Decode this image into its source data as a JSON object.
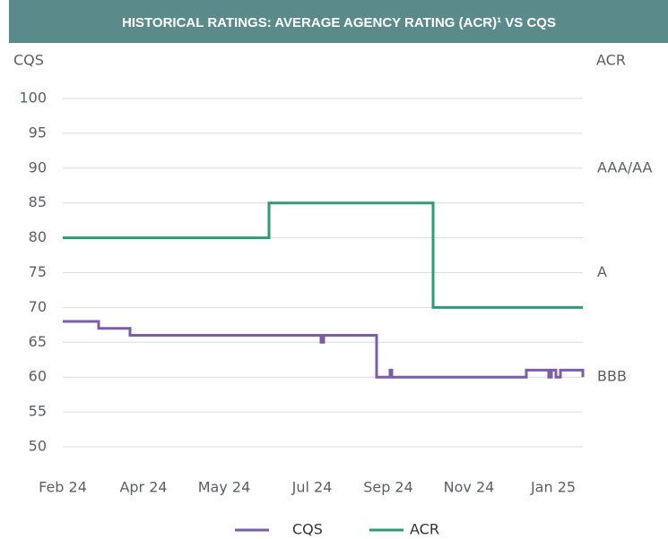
{
  "chart_data": {
    "type": "line",
    "title": "HISTORICAL RATINGS: AVERAGE AGENCY RATING (ACR)¹ VS CQS",
    "ylabel": "CQS",
    "y2label": "ACR",
    "step": true,
    "xlim": [
      0,
      580
    ],
    "xticks": [
      {
        "value": 0,
        "label": "Feb 24"
      },
      {
        "value": 90,
        "label": "Apr 24"
      },
      {
        "value": 180,
        "label": "May 24"
      },
      {
        "value": 278,
        "label": "Jul 24"
      },
      {
        "value": 363,
        "label": "Sep 24"
      },
      {
        "value": 453,
        "label": "Nov 24"
      },
      {
        "value": 547,
        "label": "Jan 25"
      }
    ],
    "ylim": [
      50,
      100
    ],
    "yticks": [
      50,
      55,
      60,
      65,
      70,
      75,
      80,
      85,
      90,
      95,
      100
    ],
    "y2lim": [
      50,
      100
    ],
    "y2ticks": [
      {
        "value": 90,
        "label": "AAA/AA"
      },
      {
        "value": 75,
        "label": "A"
      },
      {
        "value": 60,
        "label": "BBB"
      }
    ],
    "grid": true,
    "legend": "bottom",
    "series": [
      {
        "name": "CQS",
        "color": "#7b5ea7",
        "x": [
          0,
          40,
          75,
          288,
          291,
          350,
          365,
          367,
          517,
          542,
          545,
          550,
          555,
          580
        ],
        "values": [
          68,
          67,
          66,
          65,
          66,
          60,
          61,
          60,
          61,
          60,
          61,
          60,
          61,
          60
        ]
      },
      {
        "name": "ACR",
        "color": "#2e9a76",
        "axis": "y2",
        "x": [
          0,
          230,
          413,
          580
        ],
        "values": [
          80,
          85,
          70,
          70
        ]
      }
    ]
  }
}
